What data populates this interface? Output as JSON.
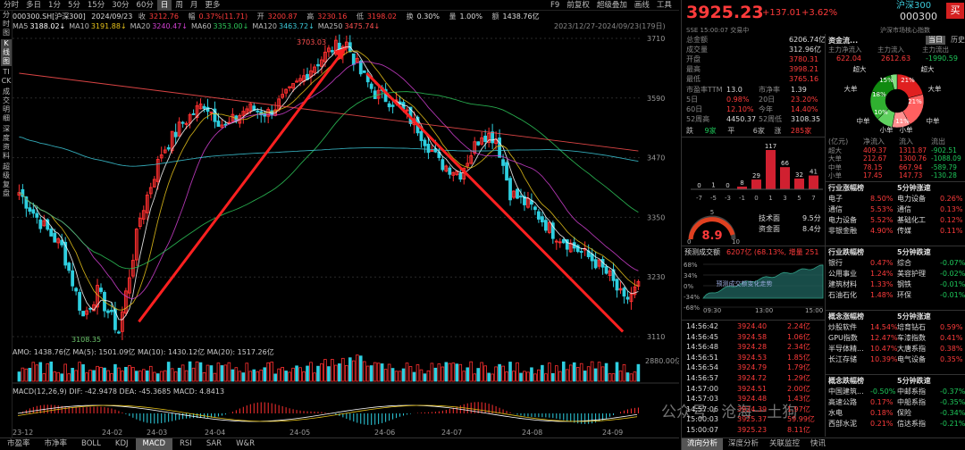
{
  "top_tabs": [
    "分时",
    "多日",
    "1分",
    "5分",
    "15分",
    "30分",
    "60分",
    "日",
    "周",
    "月",
    "更多"
  ],
  "top_right": [
    "F9",
    "前复权",
    "超级叠加",
    "画线",
    "工具"
  ],
  "left_tabs": [
    "分时图",
    "K线图",
    "TICK",
    "成交明细",
    "深度资料",
    "超级复盘"
  ],
  "info": {
    "code": "000300.SH[沪深300]",
    "date": "2024/09/23",
    "close_label": "收",
    "close": "3212.76",
    "pct_label": "幅",
    "pct": "0.37%(11.71)",
    "open_label": "开",
    "open": "3200.87",
    "high_label": "高",
    "high": "3230.16",
    "low_label": "低",
    "low": "3198.02",
    "turn_label": "换",
    "turn": "0.30%",
    "vol_label": "量",
    "vol": "1.00%",
    "amt_label": "额",
    "amt": "1438.76亿"
  },
  "ma": [
    {
      "label": "MA5",
      "value": "3188.02↓",
      "color": "#ffffff"
    },
    {
      "label": "MA10",
      "value": "3191.88↓",
      "color": "#e6c21a"
    },
    {
      "label": "MA20",
      "value": "3240.47↓",
      "color": "#d040d0"
    },
    {
      "label": "MA60",
      "value": "3353.00↓",
      "color": "#2ec85a"
    },
    {
      "label": "MA120",
      "value": "3463.72↓",
      "color": "#3cc8d8"
    },
    {
      "label": "MA250",
      "value": "3475.74↓",
      "color": "#ff5050"
    }
  ],
  "range_label": "2023/12/27-2024/09/23(179日)",
  "price_axis": [
    "3710",
    "3590",
    "3470",
    "3350",
    "3230",
    "3110"
  ],
  "high_marker": "3703.03",
  "low_marker": "3108.35",
  "amo": {
    "text": "AMO: 1438.76亿 MA(5): 1501.09亿 MA(10): 1430.12亿 MA(20): 1517.26亿",
    "axis": "2880.00亿"
  },
  "macd": {
    "text": "MACD(12,26,9) DIF: -42.9478 DEA: -45.3685 MACD: 4.8413"
  },
  "x_labels": [
    "23-12",
    "24-02",
    "24-03",
    "24-04",
    "24-05",
    "24-06",
    "24-07",
    "24-08",
    "24-09"
  ],
  "bottom_tabs": [
    "市盈率",
    "市净率",
    "BOLL",
    "KDJ",
    "MACD",
    "RSI",
    "SAR",
    "W&R"
  ],
  "watermark": "公众号 · 沧海一土狗",
  "quote": {
    "price": "3925.23",
    "chg": "+137.01",
    "pct": "+3.62%",
    "name": "沪深300",
    "code": "000300",
    "buy": "买",
    "sub": "SSE 15:00:07 交易中",
    "sub2": "沪深市场核心指数"
  },
  "stats": [
    [
      "总金额",
      "6206.74亿"
    ],
    [
      "成交量",
      "312.96亿"
    ],
    [
      "开盘",
      "3780.31"
    ],
    [
      "最高",
      "3998.21"
    ],
    [
      "最低",
      "3765.16"
    ]
  ],
  "valuation": [
    [
      "市盈率TTM",
      "13.0",
      "市净率",
      "1.39"
    ],
    [
      "5日",
      "0.98%",
      "20日",
      "23.20%"
    ],
    [
      "60日",
      "12.10%",
      "今年",
      "14.40%"
    ],
    [
      "52周高",
      "4450.37",
      "52周低",
      "3108.35"
    ]
  ],
  "breadth": {
    "down_label": "跌",
    "down": "9家",
    "flat_label": "平",
    "flat": "6家",
    "up_label": "涨",
    "up": "285家"
  },
  "fund_tabs": [
    "资金流...",
    "当日",
    "历史"
  ],
  "fund_flow": {
    "main_in_label": "主力净流入",
    "main_in": "622.04",
    "main_out_label": "主力流入",
    "main_out": "2612.63",
    "main_net_label": "主力流出",
    "main_net": "-1990.59"
  },
  "pie_labels": [
    "超大",
    "大单",
    "中单",
    "小单",
    "超大",
    "大单",
    "中单",
    "小单"
  ],
  "pie_pcts": [
    "15%",
    "21%",
    "21%",
    "10%",
    "11%",
    "18%"
  ],
  "flow_table": {
    "head": [
      "(亿元)",
      "净流入",
      "流入",
      "流出"
    ],
    "rows": [
      [
        "超大",
        "409.37",
        "1311.87",
        "-902.51"
      ],
      [
        "大单",
        "212.67",
        "1300.76",
        "-1088.09"
      ],
      [
        "中单",
        "78.15",
        "667.94",
        "-589.79"
      ],
      [
        "小单",
        "17.45",
        "147.73",
        "-130.28"
      ]
    ]
  },
  "dist": {
    "bars": [
      "0",
      "1",
      "0",
      "8",
      "29",
      "117",
      "66",
      "32",
      "41"
    ],
    "axis": [
      "-7",
      "-5",
      "-3",
      "-1",
      "0",
      "1",
      "3",
      "5",
      "7"
    ]
  },
  "gauge": {
    "value": "8.9",
    "min": "0",
    "max": "10",
    "mid": "5",
    "tech_label": "技术面",
    "tech": "9.5分",
    "fund_label": "资金面",
    "fund": "8.4分"
  },
  "industry": {
    "title_up": "行业涨幅榜",
    "title_speed": "5分钟涨速",
    "up": [
      [
        "电子",
        "8.50%"
      ],
      [
        "通信",
        "5.53%"
      ],
      [
        "电力设备",
        "5.52%"
      ],
      [
        "非银金融",
        "4.90%"
      ]
    ],
    "speed": [
      [
        "电力设备",
        "0.26%"
      ],
      [
        "通信",
        "0.13%"
      ],
      [
        "基础化工",
        "0.12%"
      ],
      [
        "传媒",
        "0.11%"
      ]
    ]
  },
  "industry_down": {
    "title_down": "行业跌幅榜",
    "title_speed": "5分钟跌速",
    "down": [
      [
        "银行",
        "0.47%"
      ],
      [
        "公用事业",
        "1.24%"
      ],
      [
        "建筑材料",
        "1.33%"
      ],
      [
        "石油石化",
        "1.48%"
      ]
    ],
    "speed": [
      [
        "综合",
        "-0.07%"
      ],
      [
        "美容护理",
        "-0.02%"
      ],
      [
        "钢铁",
        "-0.01%"
      ],
      [
        "环保",
        "-0.01%"
      ]
    ]
  },
  "forecast": {
    "label": "预测成交额",
    "value": "6207亿 (68.13%, 增量 251",
    "axis": [
      "68%",
      "34%",
      "0%",
      "-34%",
      "-68%"
    ],
    "times": [
      "09:30",
      "13:00",
      "15:00"
    ],
    "note": "预测成交额变化走势"
  },
  "ticks": [
    [
      "14:56:42",
      "3924.40",
      "2.24亿"
    ],
    [
      "14:56:45",
      "3924.58",
      "1.06亿"
    ],
    [
      "14:56:48",
      "3924.28",
      "2.34亿"
    ],
    [
      "14:56:51",
      "3924.53",
      "1.85亿"
    ],
    [
      "14:56:54",
      "3924.79",
      "1.79亿"
    ],
    [
      "14:56:57",
      "3924.72",
      "1.29亿"
    ],
    [
      "14:57:00",
      "3924.51",
      "2.00亿"
    ],
    [
      "14:57:03",
      "3924.48",
      "1.43亿"
    ],
    [
      "14:57:06",
      "3924.39",
      "1.97亿"
    ],
    [
      "15:00:03",
      "3925.37",
      "59.99亿"
    ],
    [
      "15:00:07",
      "3925.23",
      "8.11亿"
    ]
  ],
  "concept": {
    "title_up": "概念涨幅榜",
    "title_speed": "5分钟涨速",
    "up": [
      [
        "炒股软件",
        "14.54%"
      ],
      [
        "GPU指数",
        "12.47%"
      ],
      [
        "半导体精...",
        "10.47%"
      ],
      [
        "长江存储",
        "10.39%"
      ]
    ],
    "speed": [
      [
        "培育钻石",
        "0.59%"
      ],
      [
        "车漆指数",
        "0.41%"
      ],
      [
        "大唐系指",
        "0.38%"
      ],
      [
        "电气设备",
        "0.35%"
      ]
    ]
  },
  "concept_down": {
    "title_down": "概念跌幅榜",
    "title_speed": "5分钟跌速",
    "down": [
      [
        "中国建筑...",
        "-0.50%"
      ],
      [
        "高速公路",
        "0.17%"
      ],
      [
        "水电",
        "0.18%"
      ],
      [
        "西部水泥",
        "0.21%"
      ]
    ],
    "speed": [
      [
        "中邮系指",
        "-0.37%"
      ],
      [
        "中船系指",
        "-0.35%"
      ],
      [
        "保险",
        "-0.34%"
      ],
      [
        "信达系指",
        "-0.21%"
      ]
    ]
  },
  "right_bottom_tabs": [
    "流向分析",
    "深度分析",
    "关联监控",
    "快讯"
  ]
}
